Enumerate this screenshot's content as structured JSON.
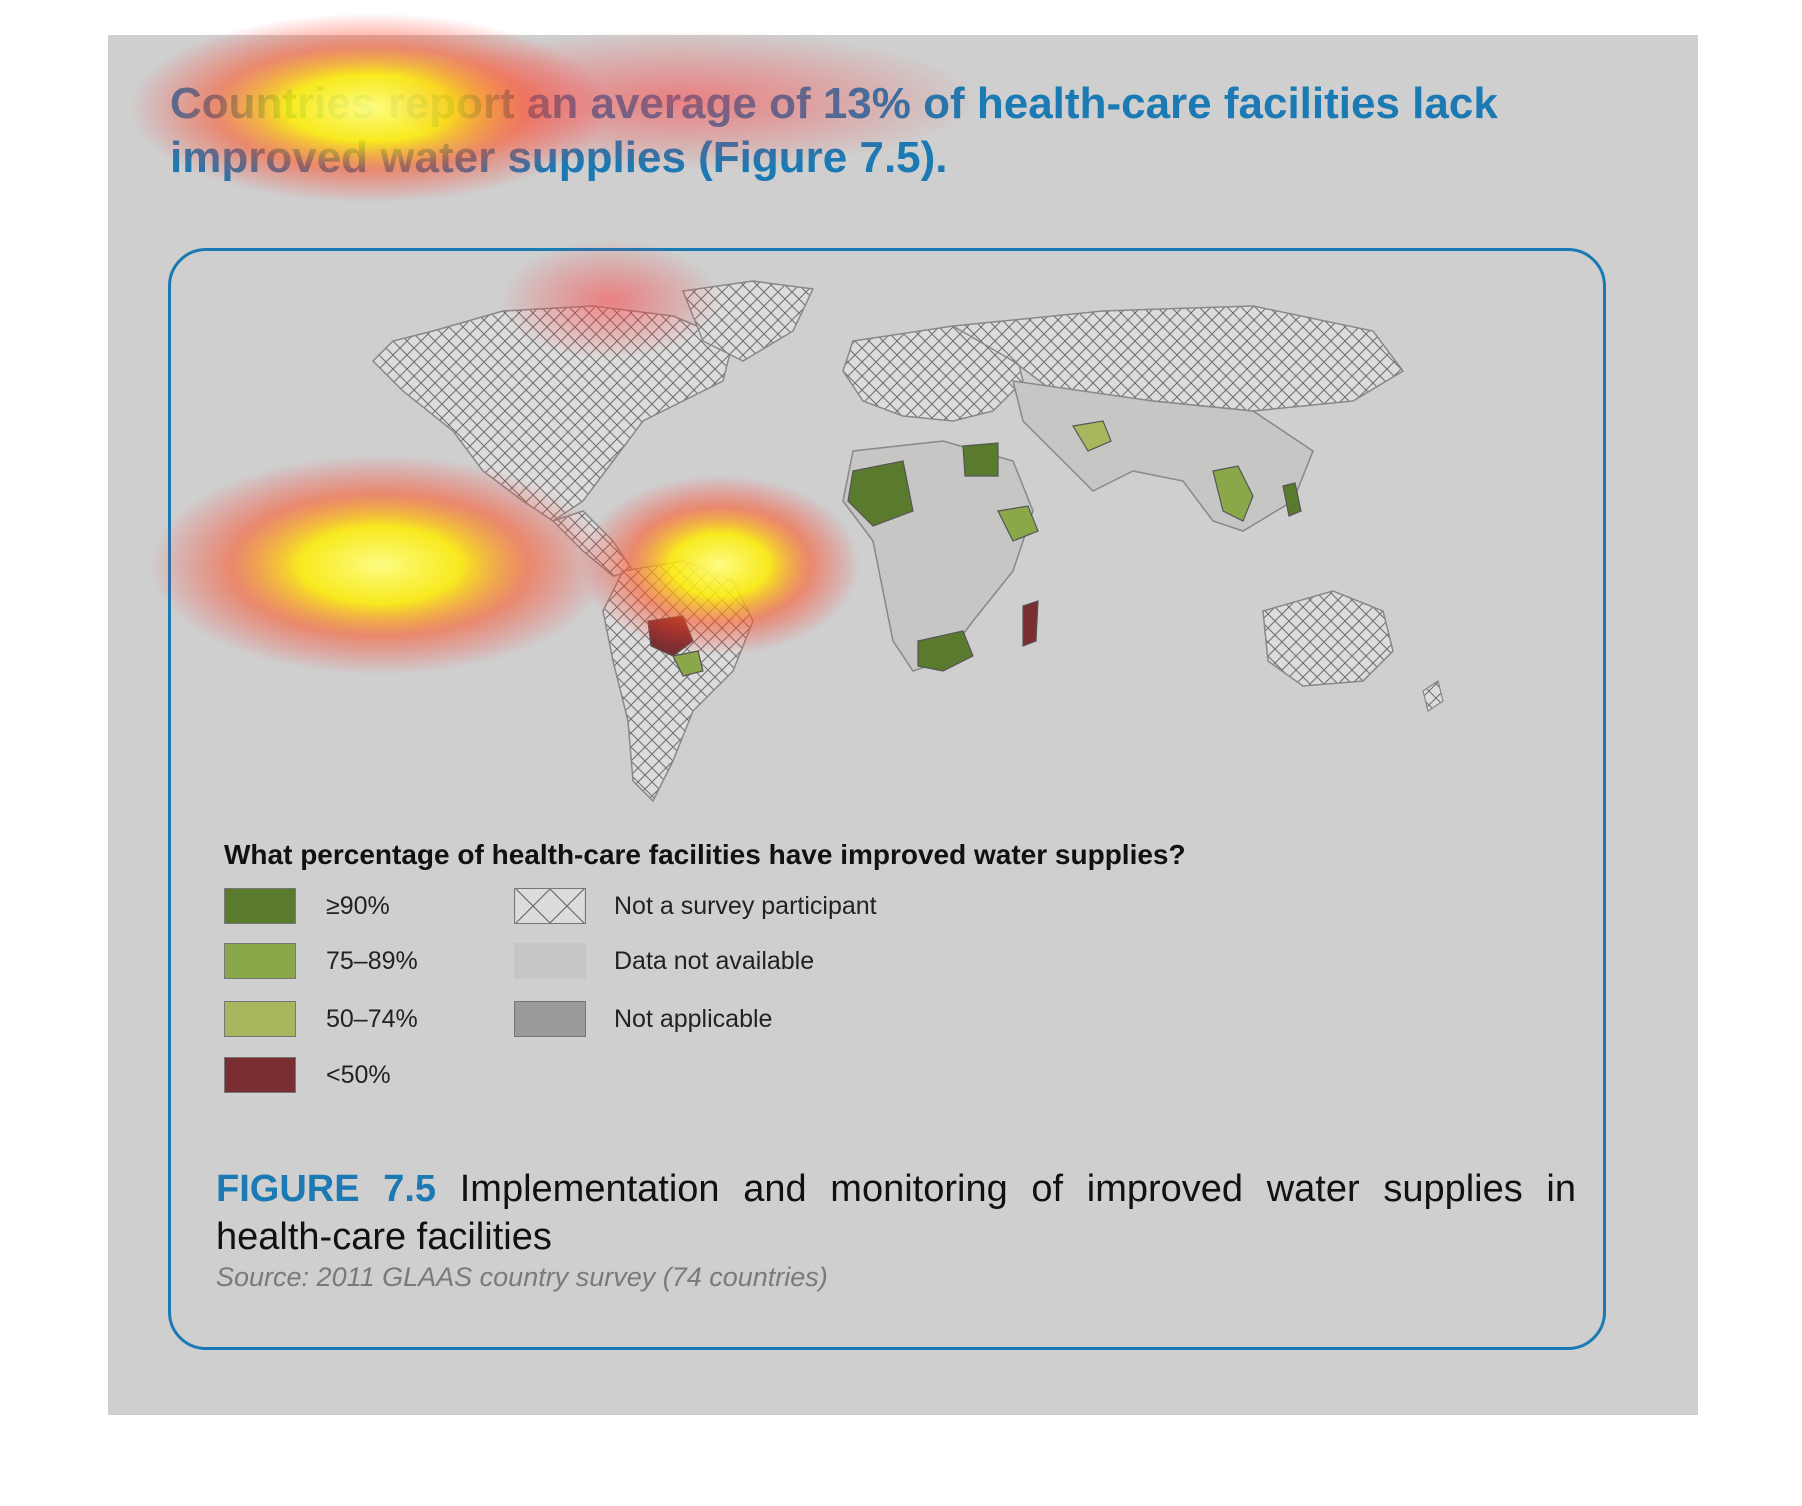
{
  "headline": "Countries report an average of 13% of health-care facilities lack improved water supplies (Figure 7.5).",
  "legend": {
    "title": "What percentage of health-care facilities have improved water supplies?",
    "items": [
      {
        "label": "≥90%",
        "color": "#5a7a2e"
      },
      {
        "label": "75–89%",
        "color": "#8aa84a"
      },
      {
        "label": "50–74%",
        "color": "#aab65e"
      },
      {
        "label": "<50%",
        "color": "#7a2e31"
      },
      {
        "label": "Not a survey participant",
        "pattern": "crosshatch"
      },
      {
        "label": "Data not available",
        "color": "#c6c6c4"
      },
      {
        "label": "Not applicable",
        "color": "#9a9a98"
      }
    ]
  },
  "caption": {
    "figure_label": "FIGURE 7.5",
    "text": "Implementation and monitoring of improved water supplies in health-care facilities"
  },
  "source": "Source: 2011 GLAAS country survey (74 countries)",
  "colors": {
    "accent_blue": "#1b79b3",
    "panel_background": "#cfcfcf",
    "heatmap_overlay": "yellow-red gaze heatmap"
  }
}
